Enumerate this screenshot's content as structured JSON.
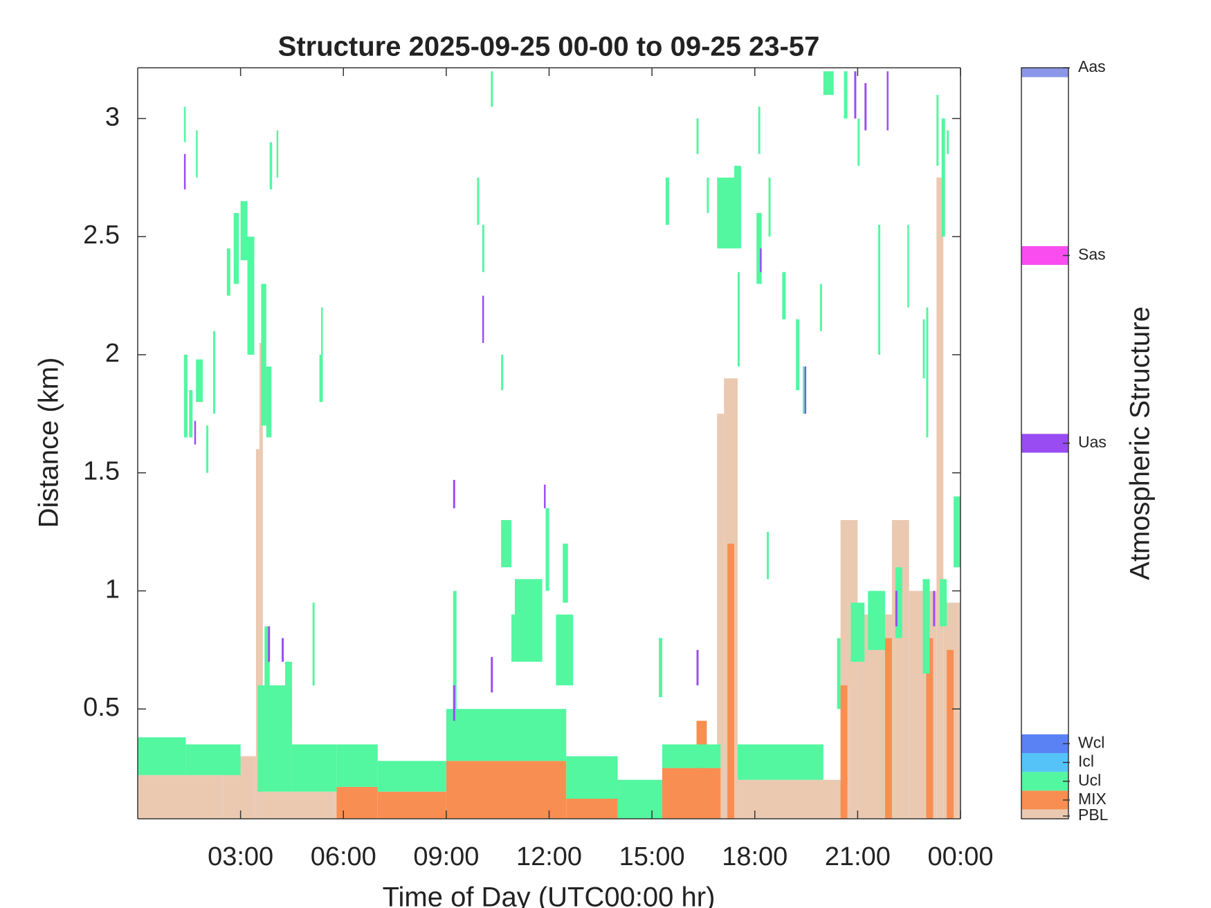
{
  "chart_data": {
    "type": "timeheight",
    "title": "Structure 2025-09-25 00-00 to 09-25 23-57",
    "xlabel": "Time of Day (UTC00:00 hr)",
    "ylabel": "Distance (km)",
    "colorbar_label": "Atmospheric Structure",
    "xlim": [
      0,
      24
    ],
    "xticks": [
      {
        "value": 3,
        "label": "03:00"
      },
      {
        "value": 6,
        "label": "06:00"
      },
      {
        "value": 9,
        "label": "09:00"
      },
      {
        "value": 12,
        "label": "12:00"
      },
      {
        "value": 15,
        "label": "15:00"
      },
      {
        "value": 18,
        "label": "18:00"
      },
      {
        "value": 21,
        "label": "21:00"
      },
      {
        "value": 24,
        "label": "00:00"
      }
    ],
    "ylim": [
      0.035,
      3.215
    ],
    "yticks": [
      0.5,
      1,
      1.5,
      2,
      2.5,
      3
    ],
    "clim": [
      0,
      40
    ],
    "classes": [
      {
        "name": "PBL",
        "value": 0,
        "color": "#ebc9b1",
        "segments": [
          [
            0,
            2.5,
            0.035,
            0.22
          ],
          [
            2.5,
            3.45,
            0.035,
            0.3
          ],
          [
            3.45,
            3.55,
            0.035,
            1.6
          ],
          [
            3.55,
            3.65,
            0.035,
            2.05
          ],
          [
            3.65,
            5.8,
            0.035,
            0.15
          ],
          [
            16.9,
            17.1,
            0.035,
            1.75
          ],
          [
            17.1,
            17.5,
            0.035,
            1.9
          ],
          [
            17.5,
            20.5,
            0.035,
            0.2
          ],
          [
            20.5,
            21,
            0.035,
            1.3
          ],
          [
            21,
            22,
            0.035,
            0.9
          ],
          [
            22,
            22.5,
            0.035,
            1.3
          ],
          [
            22.5,
            23.3,
            0.035,
            1.0
          ],
          [
            23.3,
            23.5,
            0.035,
            2.75
          ],
          [
            23.5,
            24,
            0.035,
            0.95
          ]
        ]
      },
      {
        "name": "MIX",
        "value": 1,
        "color": "#f98e52",
        "segments": [
          [
            5.8,
            7,
            0.035,
            0.17
          ],
          [
            7,
            9,
            0.035,
            0.15
          ],
          [
            9,
            12.5,
            0.035,
            0.28
          ],
          [
            12.5,
            14,
            0.035,
            0.12
          ],
          [
            15.3,
            17,
            0.035,
            0.25
          ],
          [
            16.3,
            16.6,
            0.035,
            0.45
          ],
          [
            17.2,
            17.4,
            0.035,
            1.2
          ],
          [
            20.5,
            20.7,
            0.035,
            0.6
          ],
          [
            21.8,
            22,
            0.035,
            0.8
          ],
          [
            23,
            23.2,
            0.035,
            0.8
          ],
          [
            23.6,
            23.8,
            0.035,
            0.75
          ]
        ]
      },
      {
        "name": "Ucl",
        "value": 2,
        "color": "#52f7a0",
        "segments": [
          [
            0,
            1.4,
            0.22,
            0.38
          ],
          [
            1.4,
            3,
            0.22,
            0.35
          ],
          [
            3.5,
            4.5,
            0.15,
            0.6
          ],
          [
            4.5,
            5.8,
            0.15,
            0.35
          ],
          [
            5.8,
            7,
            0.17,
            0.35
          ],
          [
            7,
            9,
            0.15,
            0.28
          ],
          [
            9,
            12.5,
            0.28,
            0.5
          ],
          [
            12.5,
            14,
            0.12,
            0.3
          ],
          [
            14,
            15.3,
            0.035,
            0.2
          ],
          [
            15.3,
            17,
            0.25,
            0.35
          ],
          [
            17.5,
            20,
            0.2,
            0.35
          ],
          [
            1.35,
            1.45,
            1.65,
            2.0
          ],
          [
            1.5,
            1.6,
            1.65,
            1.85
          ],
          [
            1.7,
            1.9,
            1.8,
            1.98
          ],
          [
            2.0,
            2.06,
            1.5,
            1.7
          ],
          [
            2.2,
            2.26,
            1.75,
            2.1
          ],
          [
            2.6,
            2.7,
            2.25,
            2.45
          ],
          [
            2.8,
            2.95,
            2.3,
            2.6
          ],
          [
            3.0,
            3.2,
            2.4,
            2.65
          ],
          [
            3.2,
            3.4,
            2.0,
            2.5
          ],
          [
            3.6,
            3.75,
            1.7,
            2.3
          ],
          [
            3.75,
            3.9,
            1.65,
            1.95
          ],
          [
            3.85,
            3.92,
            2.7,
            2.9
          ],
          [
            4.05,
            4.1,
            2.75,
            2.95
          ],
          [
            1.35,
            1.4,
            2.9,
            3.05
          ],
          [
            1.7,
            1.75,
            2.75,
            2.95
          ],
          [
            5.3,
            5.4,
            1.8,
            2.0
          ],
          [
            5.35,
            5.4,
            2.0,
            2.2
          ],
          [
            5.1,
            5.16,
            0.6,
            0.95
          ],
          [
            3.7,
            3.85,
            0.35,
            0.85
          ],
          [
            4.3,
            4.5,
            0.4,
            0.7
          ],
          [
            9.2,
            9.3,
            0.5,
            1.0
          ],
          [
            10.6,
            10.9,
            1.1,
            1.3
          ],
          [
            11.0,
            11.8,
            0.7,
            1.05
          ],
          [
            12.2,
            12.7,
            0.6,
            0.9
          ],
          [
            12.4,
            12.55,
            0.95,
            1.2
          ],
          [
            11.9,
            12.0,
            1.0,
            1.35
          ],
          [
            10.9,
            11.0,
            0.7,
            0.9
          ],
          [
            10.3,
            10.36,
            3.05,
            3.2
          ],
          [
            9.9,
            9.96,
            2.55,
            2.75
          ],
          [
            10.05,
            10.11,
            2.35,
            2.55
          ],
          [
            10.6,
            10.66,
            1.85,
            2.0
          ],
          [
            15.2,
            15.3,
            0.55,
            0.8
          ],
          [
            15.4,
            15.5,
            2.55,
            2.75
          ],
          [
            16.3,
            16.36,
            2.85,
            3.0
          ],
          [
            16.6,
            16.66,
            2.6,
            2.75
          ],
          [
            16.9,
            17.4,
            2.45,
            2.75
          ],
          [
            17.4,
            17.6,
            2.45,
            2.8
          ],
          [
            17.5,
            17.56,
            1.95,
            2.35
          ],
          [
            18.05,
            18.2,
            2.3,
            2.6
          ],
          [
            18.1,
            18.16,
            2.85,
            3.05
          ],
          [
            18.4,
            18.46,
            2.5,
            2.75
          ],
          [
            18.8,
            18.9,
            2.15,
            2.35
          ],
          [
            19.2,
            19.3,
            1.85,
            2.15
          ],
          [
            19.4,
            19.5,
            1.75,
            1.95
          ],
          [
            19.9,
            19.96,
            2.1,
            2.3
          ],
          [
            20.0,
            20.3,
            3.1,
            3.2
          ],
          [
            20.6,
            20.7,
            3.0,
            3.2
          ],
          [
            21.0,
            21.06,
            2.8,
            3.0
          ],
          [
            20.4,
            20.5,
            0.5,
            0.8
          ],
          [
            20.8,
            21.2,
            0.7,
            0.95
          ],
          [
            21.3,
            21.8,
            0.75,
            1.0
          ],
          [
            22.1,
            22.3,
            0.8,
            1.1
          ],
          [
            22.9,
            23.1,
            0.65,
            1.05
          ],
          [
            23.4,
            23.6,
            0.85,
            1.05
          ],
          [
            23.8,
            24,
            1.1,
            1.4
          ],
          [
            21.6,
            21.66,
            2.0,
            2.55
          ],
          [
            22.45,
            22.5,
            2.2,
            2.55
          ],
          [
            22.9,
            22.96,
            1.9,
            2.15
          ],
          [
            23.0,
            23.06,
            1.65,
            2.2
          ],
          [
            23.45,
            23.55,
            2.5,
            3.0
          ],
          [
            23.6,
            23.66,
            2.85,
            2.95
          ],
          [
            23.3,
            23.36,
            2.8,
            3.1
          ],
          [
            18.35,
            18.41,
            1.05,
            1.25
          ]
        ]
      },
      {
        "name": "Icl",
        "value": 3,
        "color": "#55c3f8",
        "segments": []
      },
      {
        "name": "Wcl",
        "value": 4,
        "color": "#5a82f5",
        "segments": []
      },
      {
        "name": "Uas",
        "value": 20,
        "color": "#9a4cf3",
        "segments": [
          [
            1.35,
            1.4,
            2.7,
            2.85
          ],
          [
            1.65,
            1.7,
            1.62,
            1.72
          ],
          [
            3.8,
            3.86,
            0.7,
            0.85
          ],
          [
            4.2,
            4.26,
            0.7,
            0.8
          ],
          [
            10.05,
            10.1,
            2.05,
            2.25
          ],
          [
            9.2,
            9.26,
            1.35,
            1.47
          ],
          [
            11.85,
            11.9,
            1.35,
            1.45
          ],
          [
            9.2,
            9.26,
            0.45,
            0.6
          ],
          [
            10.3,
            10.36,
            0.57,
            0.72
          ],
          [
            16.3,
            16.36,
            0.6,
            0.75
          ],
          [
            18.15,
            18.2,
            2.35,
            2.45
          ],
          [
            19.45,
            19.5,
            1.75,
            1.95
          ],
          [
            20.9,
            20.96,
            3.0,
            3.2
          ],
          [
            21.2,
            21.26,
            2.95,
            3.15
          ],
          [
            21.85,
            21.9,
            2.95,
            3.2
          ],
          [
            22.1,
            22.16,
            0.85,
            1.0
          ],
          [
            23.2,
            23.26,
            0.85,
            1.0
          ]
        ]
      },
      {
        "name": "Sas",
        "value": 30,
        "color": "#f94df0",
        "segments": []
      },
      {
        "name": "Aas",
        "value": 40,
        "color": "#8b96e9",
        "segments": []
      }
    ]
  }
}
